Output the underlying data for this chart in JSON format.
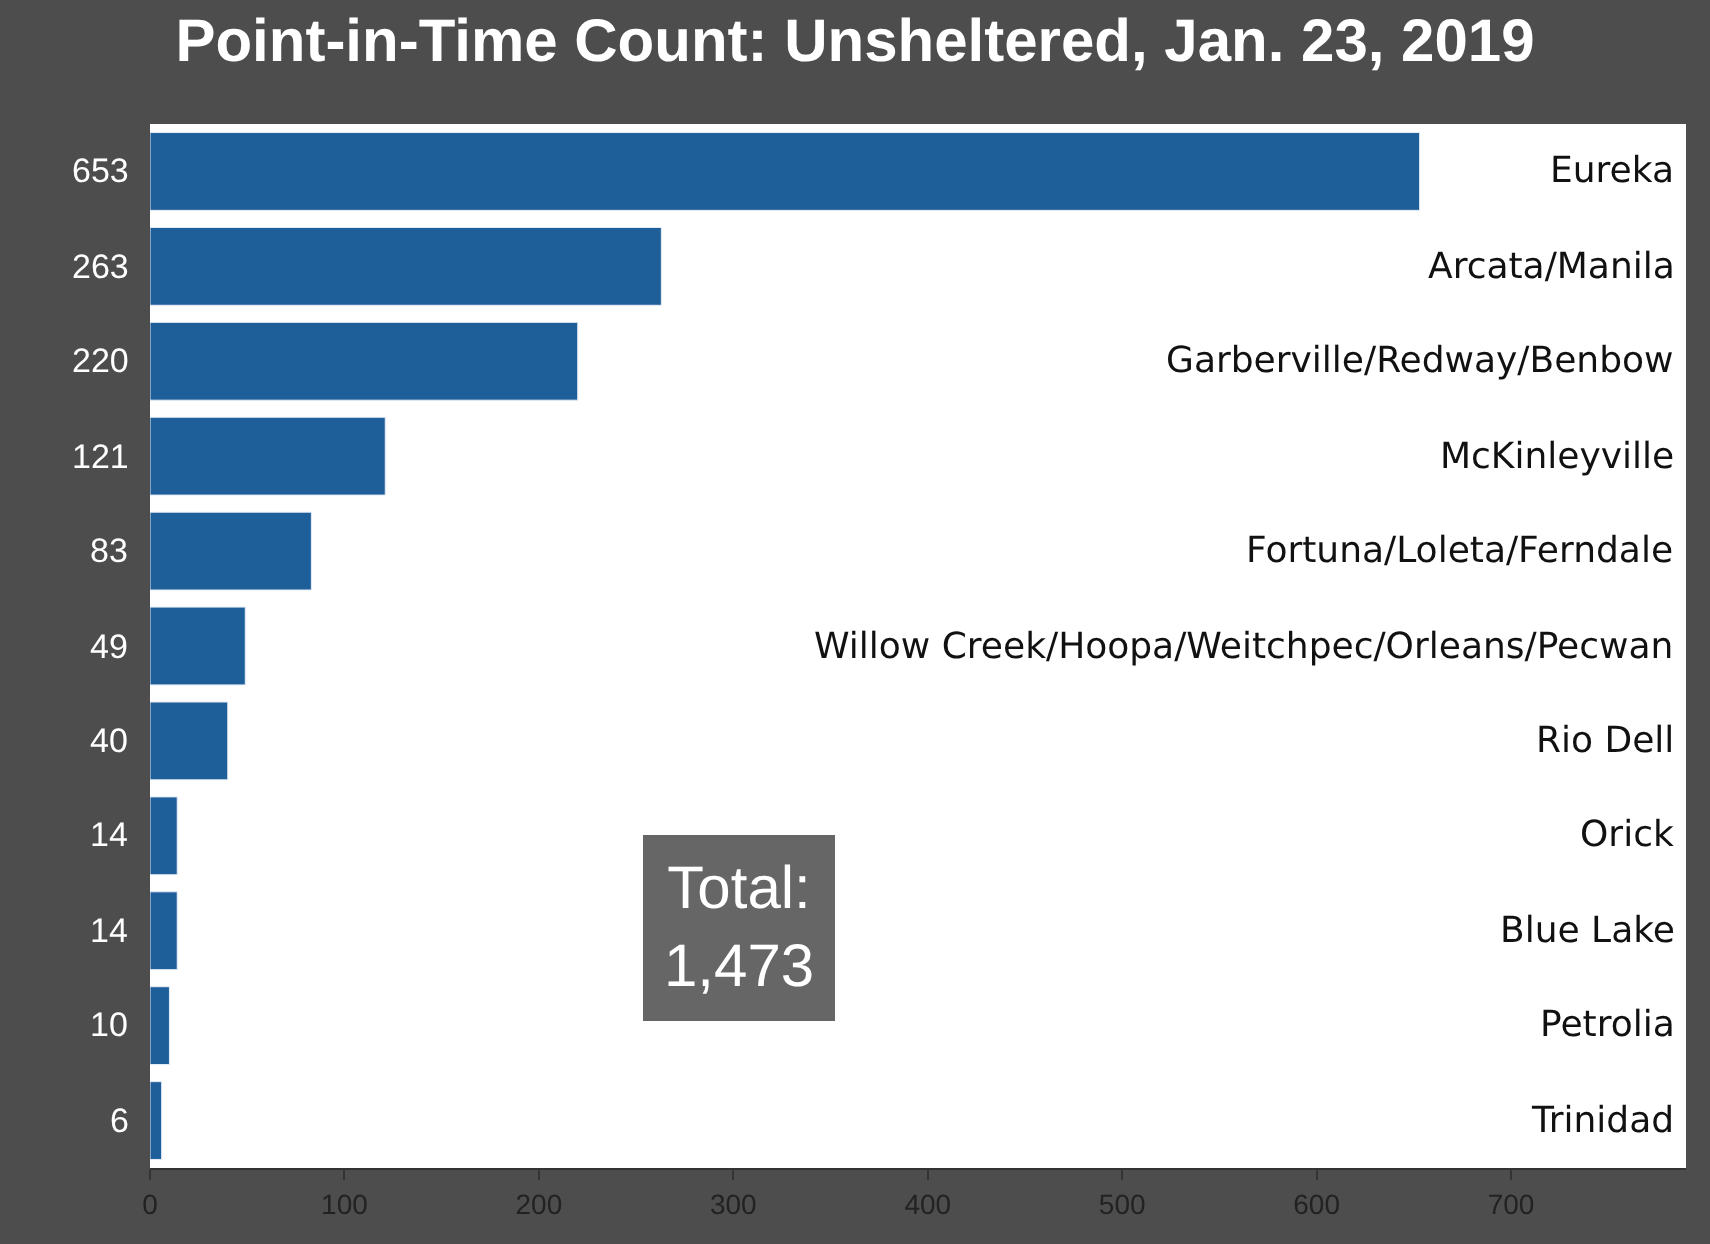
{
  "chart_data": {
    "type": "bar",
    "orientation": "horizontal",
    "title": "Point-in-Time Count: Unsheltered, Jan. 23, 2019",
    "categories": [
      "Eureka",
      "Arcata/Manila",
      "Garberville/Redway/Benbow",
      "McKinleyville",
      "Fortuna/Loleta/Ferndale",
      "Willow Creek/Hoopa/Weitchpec/Orleans/Pecwan",
      "Rio Dell",
      "Orick",
      "Blue Lake",
      "Petrolia",
      "Trinidad"
    ],
    "values": [
      653,
      263,
      220,
      121,
      83,
      49,
      40,
      14,
      14,
      10,
      6
    ],
    "color": "#1f5f99",
    "xlim": [
      0,
      790
    ],
    "xticks": [
      0,
      100,
      200,
      300,
      400,
      500,
      600,
      700
    ],
    "data_labels": true,
    "annotations": [
      "Total:\n1,473"
    ]
  }
}
